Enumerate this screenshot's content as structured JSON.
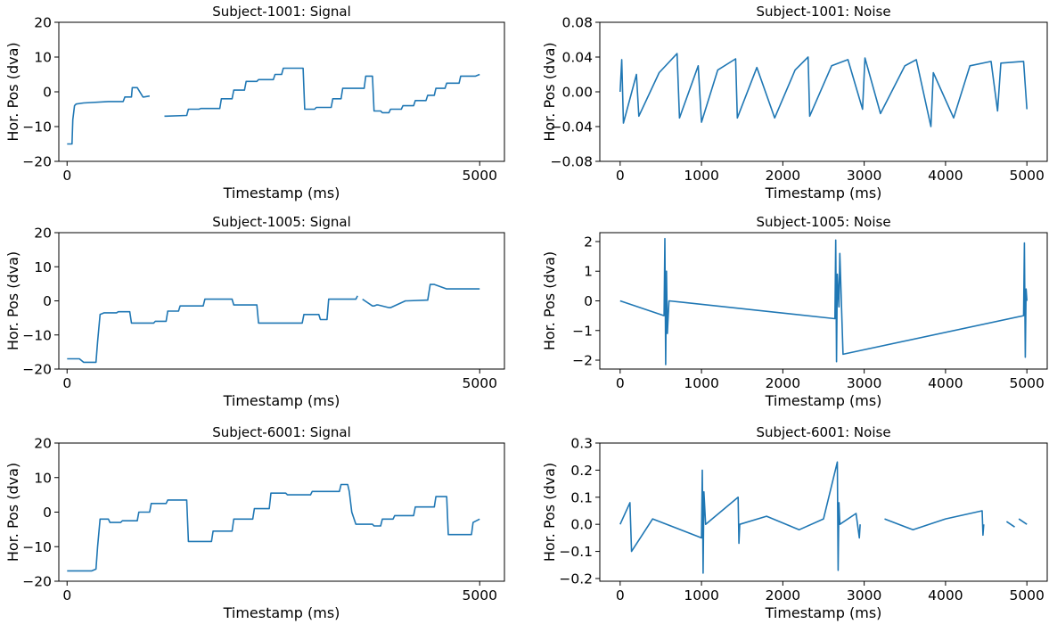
{
  "line_color": "#1f77b4",
  "chart_data": [
    {
      "type": "line",
      "title": "Subject-1001: Signal",
      "xlabel": "Timestamp (ms)",
      "ylabel": "Hor. Pos (dva)",
      "xlim": [
        -100,
        5300
      ],
      "ylim": [
        -20,
        20
      ],
      "xticks": [
        0,
        5000
      ],
      "yticks": [
        -20,
        -10,
        0,
        10,
        20
      ],
      "ytick_labels": [
        "−20",
        "−10",
        "0",
        "10",
        "20"
      ],
      "series": [
        {
          "x": [
            0,
            60,
            70,
            90,
            110,
            200,
            500,
            680,
            700,
            780,
            790,
            850,
            920,
            930,
            1000,
            1020,
            1180,
            1200,
            1450,
            1470,
            1600,
            1620,
            1850,
            1870,
            2000,
            2020,
            2150,
            2170,
            2300,
            2320,
            2500,
            2520,
            2600,
            2620,
            2860,
            2880,
            3000,
            3020,
            3200,
            3220,
            3320,
            3340,
            3600,
            3620,
            3700,
            3720,
            3800,
            3820,
            3900,
            3920,
            4050,
            4070,
            4200,
            4220,
            4350,
            4370,
            4450,
            4470,
            4580,
            4600,
            4750,
            4770,
            4950,
            5000
          ],
          "y": [
            -15,
            -15,
            -8,
            -4,
            -3.5,
            -3.2,
            -2.8,
            -2.8,
            -1.5,
            -1.5,
            1.2,
            1.2,
            -1.5,
            -1.5,
            -1.2,
            null,
            -7,
            -7,
            -6.8,
            -5,
            -5,
            -4.8,
            -4.8,
            -2,
            -2,
            0.5,
            0.5,
            3,
            3,
            3.5,
            3.5,
            5,
            5,
            6.8,
            6.8,
            -5,
            -5,
            -4.5,
            -4.5,
            -2,
            -2,
            1,
            1,
            4.5,
            4.5,
            -5.5,
            -5.5,
            -6,
            -6,
            -5,
            -5,
            -4,
            -4,
            -2.5,
            -2.5,
            -1,
            -1,
            1,
            1,
            2.5,
            2.5,
            4.5,
            4.5,
            5
          ]
        }
      ]
    },
    {
      "type": "line",
      "title": "Subject-1001: Noise",
      "xlabel": "Timestamp (ms)",
      "ylabel": "Hor. Pos (dva)",
      "xlim": [
        -250,
        5250
      ],
      "ylim": [
        -0.08,
        0.08
      ],
      "xticks": [
        0,
        1000,
        2000,
        3000,
        4000,
        5000
      ],
      "yticks": [
        -0.08,
        -0.04,
        0,
        0.04,
        0.08
      ],
      "ytick_labels": [
        "−0.08",
        "−0.04",
        "0.00",
        "0.04",
        "0.08"
      ],
      "series": [
        {
          "x": [
            0,
            20,
            40,
            200,
            230,
            480,
            700,
            730,
            960,
            1000,
            1200,
            1420,
            1440,
            1680,
            1900,
            2150,
            2310,
            2330,
            2600,
            2800,
            2980,
            3010,
            3200,
            3500,
            3640,
            3820,
            3850,
            4100,
            4300,
            4560,
            4640,
            4680,
            4960,
            5000
          ],
          "y": [
            0,
            0.037,
            -0.036,
            0.02,
            -0.028,
            0.022,
            0.044,
            -0.03,
            0.03,
            -0.035,
            0.025,
            0.038,
            -0.03,
            0.028,
            -0.03,
            0.025,
            0.04,
            -0.028,
            0.03,
            0.037,
            -0.02,
            0.039,
            -0.025,
            0.03,
            0.037,
            -0.04,
            0.022,
            -0.03,
            0.03,
            0.035,
            -0.022,
            0.033,
            0.035,
            -0.02
          ]
        }
      ]
    },
    {
      "type": "line",
      "title": "Subject-1005: Signal",
      "xlabel": "Timestamp (ms)",
      "ylabel": "Hor. Pos (dva)",
      "xlim": [
        -100,
        5300
      ],
      "ylim": [
        -20,
        20
      ],
      "xticks": [
        0,
        5000
      ],
      "yticks": [
        -20,
        -10,
        0,
        10,
        20
      ],
      "ytick_labels": [
        "−20",
        "−10",
        "0",
        "10",
        "20"
      ],
      "series": [
        {
          "x": [
            0,
            150,
            200,
            350,
            370,
            400,
            450,
            600,
            620,
            760,
            780,
            1050,
            1070,
            1200,
            1220,
            1350,
            1370,
            1650,
            1670,
            2000,
            2020,
            2300,
            2320,
            2850,
            2870,
            3050,
            3070,
            3150,
            3170,
            3500,
            3520,
            3550,
            3580,
            3700,
            3720,
            3750,
            3770,
            3900,
            3920,
            4100,
            4120,
            4350,
            4370,
            4400,
            4450,
            4600,
            4620,
            5000
          ],
          "y": [
            -17,
            -17,
            -18,
            -18,
            -12,
            -4,
            -3.5,
            -3.5,
            -3.2,
            -3.2,
            -6.5,
            -6.5,
            -6,
            -6,
            -3,
            -3,
            -1.5,
            -1.5,
            0.5,
            0.5,
            -1.2,
            -1.2,
            -6.5,
            -6.5,
            -4,
            -4,
            -5.5,
            -5.5,
            0.5,
            0.5,
            1.5,
            null,
            0.5,
            -1.5,
            -1.5,
            -1.2,
            -1.2,
            -2,
            -2,
            0,
            0,
            0.2,
            0.2,
            4.8,
            4.8,
            3.5,
            3.5,
            3.5
          ]
        }
      ]
    },
    {
      "type": "line",
      "title": "Subject-1005: Noise",
      "xlabel": "Timestamp (ms)",
      "ylabel": "Hor. Pos (dva)",
      "xlim": [
        -250,
        5250
      ],
      "ylim": [
        -2.3,
        2.3
      ],
      "xticks": [
        0,
        1000,
        2000,
        3000,
        4000,
        5000
      ],
      "yticks": [
        -2,
        -1,
        0,
        1,
        2
      ],
      "ytick_labels": [
        "−2",
        "−1",
        "0",
        "1",
        "2"
      ],
      "series": [
        {
          "x": [
            0,
            540,
            550,
            560,
            570,
            580,
            600,
            2640,
            2650,
            2660,
            2670,
            2690,
            2700,
            2740,
            4960,
            4970,
            4980,
            4990,
            5000
          ],
          "y": [
            0,
            -0.5,
            2.1,
            -2.15,
            1,
            -1.1,
            0,
            -0.6,
            2.05,
            -2.05,
            0.9,
            -0.2,
            1.6,
            -1.8,
            -0.5,
            1.95,
            -1.9,
            0.4,
            0
          ]
        }
      ]
    },
    {
      "type": "line",
      "title": "Subject-6001: Signal",
      "xlabel": "Timestamp (ms)",
      "ylabel": "Hor. Pos (dva)",
      "xlim": [
        -100,
        5300
      ],
      "ylim": [
        -20,
        20
      ],
      "xticks": [
        0,
        5000
      ],
      "yticks": [
        -20,
        -10,
        0,
        10,
        20
      ],
      "ytick_labels": [
        "−20",
        "−10",
        "0",
        "10",
        "20"
      ],
      "series": [
        {
          "x": [
            0,
            300,
            350,
            370,
            400,
            500,
            520,
            650,
            670,
            850,
            870,
            1000,
            1020,
            1200,
            1220,
            1450,
            1470,
            1750,
            1770,
            2000,
            2020,
            2250,
            2270,
            2450,
            2470,
            2650,
            2670,
            2950,
            2970,
            3300,
            3320,
            3400,
            3420,
            3450,
            3500,
            3700,
            3720,
            3800,
            3820,
            3950,
            3970,
            4200,
            4220,
            4450,
            4470,
            4600,
            4620,
            4900,
            4920,
            5000
          ],
          "y": [
            -17,
            -17,
            -16.5,
            -10,
            -2,
            -2,
            -3,
            -3,
            -2.5,
            -2.5,
            0,
            0,
            2.5,
            2.5,
            3.5,
            3.5,
            -8.5,
            -8.5,
            -5.5,
            -5.5,
            -2,
            -2,
            1,
            1,
            5.5,
            5.5,
            5,
            5,
            6,
            6,
            8,
            8,
            6,
            0,
            -3.5,
            -3.5,
            -4,
            -4,
            -2,
            -2,
            -1,
            -1,
            1.5,
            1.5,
            4.5,
            4.5,
            -6.5,
            -6.5,
            -3,
            -2
          ]
        }
      ]
    },
    {
      "type": "line",
      "title": "Subject-6001: Noise",
      "xlabel": "Timestamp (ms)",
      "ylabel": "Hor. Pos (dva)",
      "xlim": [
        -250,
        5250
      ],
      "ylim": [
        -0.21,
        0.3
      ],
      "xticks": [
        0,
        1000,
        2000,
        3000,
        4000,
        5000
      ],
      "yticks": [
        -0.2,
        -0.1,
        0,
        0.1,
        0.2,
        0.3
      ],
      "ytick_labels": [
        "−0.2",
        "−0.1",
        "0.0",
        "0.1",
        "0.2",
        "0.3"
      ],
      "series": [
        {
          "x": [
            0,
            120,
            140,
            400,
            1000,
            1010,
            1020,
            1030,
            1050,
            1450,
            1460,
            1470,
            1800,
            2200,
            2500,
            2670,
            2680,
            2690,
            2700,
            2900,
            2940,
            2950,
            null,
            3250,
            3600,
            4000,
            4450,
            4460,
            4470,
            null,
            4750,
            4850,
            null,
            4900,
            5000
          ],
          "y": [
            0,
            0.08,
            -0.1,
            0.02,
            -0.05,
            0.2,
            -0.18,
            0.12,
            0,
            0.1,
            -0.07,
            0,
            0.03,
            -0.02,
            0.02,
            0.23,
            -0.17,
            0.08,
            0,
            0.04,
            -0.05,
            0,
            null,
            0.02,
            -0.02,
            0.02,
            0.05,
            -0.04,
            0,
            null,
            0.01,
            -0.01,
            null,
            0.02,
            0
          ]
        }
      ]
    }
  ]
}
